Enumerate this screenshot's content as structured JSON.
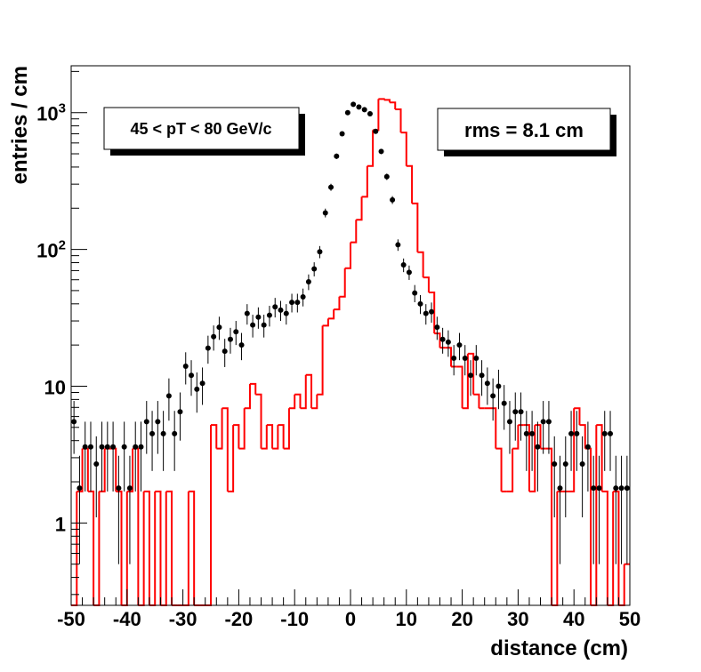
{
  "chart_data": {
    "type": "histogram",
    "xlabel": "distance (cm)",
    "ylabel": "entries / cm",
    "xlim": [
      -50,
      50
    ],
    "ylim": [
      0.25,
      2200
    ],
    "y_scale": "log",
    "x_ticks": [
      "-50",
      "-40",
      "-30",
      "-20",
      "-10",
      "0",
      "10",
      "20",
      "30",
      "40",
      "50"
    ],
    "y_ticks": [
      {
        "base": "1",
        "exp": "",
        "value": 1
      },
      {
        "base": "10",
        "exp": "",
        "value": 10
      },
      {
        "base": "10",
        "exp": "2",
        "value": 100
      },
      {
        "base": "10",
        "exp": "3",
        "value": 1000
      }
    ],
    "bin_width": 1,
    "annotations": {
      "pt_range": "45 < pT < 80 GeV/c",
      "rms": "rms = 8.1 cm"
    },
    "colors": {
      "histogram": "#ff0000",
      "points": "#000000",
      "frame": "#000000"
    },
    "series": [
      {
        "name": "histogram",
        "style": "step",
        "x_edges_start": -50,
        "values": [
          0,
          1.7,
          3.5,
          1.7,
          0,
          1.7,
          3.5,
          3.5,
          1.7,
          0,
          1.7,
          3.5,
          0,
          1.7,
          0,
          1.7,
          0,
          1.7,
          0,
          0,
          0,
          1.7,
          0,
          0,
          0,
          5.2,
          3.5,
          6.9,
          1.7,
          5.2,
          3.5,
          6.9,
          10.4,
          8.7,
          3.5,
          5.2,
          3.5,
          5.2,
          3.5,
          6.9,
          8.7,
          6.9,
          12.1,
          6.9,
          8.7,
          27.7,
          31.2,
          36.4,
          45.1,
          72.8,
          112.6,
          164.6,
          242.6,
          407.3,
          744.4,
          1258.2,
          1238.4,
          1186.3,
          1056.4,
          714.4,
          407.3,
          216.6,
          95.3,
          62.4,
          48.5,
          24.3,
          19.1,
          19.1,
          13.9,
          13.9,
          6.9,
          17.3,
          8.7,
          6.9,
          6.9,
          6.9,
          3.5,
          1.7,
          1.7,
          3.5,
          5.2,
          5.2,
          1.7,
          5.2,
          3.5,
          3.5,
          0,
          1.7,
          1.7,
          1.7,
          6.9,
          5.2,
          3.5,
          0,
          5.2,
          1.7,
          0,
          1.7,
          0,
          0.5
        ]
      },
      {
        "name": "data points",
        "style": "markers-with-error-bars",
        "x": [
          -49.5,
          -48.5,
          -47.5,
          -46.5,
          -45.5,
          -44.5,
          -43.5,
          -42.5,
          -41.5,
          -40.5,
          -39.5,
          -38.5,
          -37.5,
          -36.5,
          -35.5,
          -34.5,
          -33.5,
          -32.5,
          -31.5,
          -30.5,
          -29.5,
          -28.5,
          -27.5,
          -26.5,
          -25.5,
          -24.5,
          -23.5,
          -22.5,
          -21.5,
          -20.5,
          -19.5,
          -18.5,
          -17.5,
          -16.5,
          -15.5,
          -14.5,
          -13.5,
          -12.5,
          -11.5,
          -10.5,
          -9.5,
          -8.5,
          -7.5,
          -6.5,
          -5.5,
          -4.5,
          -3.5,
          -2.5,
          -1.5,
          -0.5,
          0.5,
          1.5,
          2.5,
          3.5,
          4.5,
          5.5,
          6.5,
          7.5,
          8.5,
          9.5,
          10.5,
          11.5,
          12.5,
          13.5,
          14.5,
          15.5,
          16.5,
          17.5,
          18.5,
          19.5,
          20.5,
          21.5,
          22.5,
          23.5,
          24.5,
          25.5,
          26.5,
          27.5,
          28.5,
          29.5,
          30.5,
          31.5,
          32.5,
          33.5,
          34.5,
          35.5,
          36.5,
          37.5,
          38.5,
          39.5,
          40.5,
          41.5,
          42.5,
          43.5,
          44.5,
          45.5,
          46.5,
          47.5,
          48.5,
          49.5
        ],
        "values": [
          5.5,
          1.8,
          3.6,
          3.6,
          2.7,
          3.6,
          3.6,
          3.6,
          1.8,
          3.6,
          1.8,
          3.6,
          3.6,
          5.5,
          4.5,
          5.5,
          4.5,
          8.5,
          4.5,
          6.5,
          14,
          12,
          9.5,
          10.5,
          19,
          23,
          27,
          18,
          22,
          25,
          20,
          34,
          28,
          32,
          28,
          33,
          38,
          36,
          34,
          41,
          41,
          45,
          58,
          72,
          96,
          185,
          285,
          480,
          700,
          1000,
          1150,
          1100,
          1050,
          980,
          730,
          520,
          340,
          230,
          108,
          77,
          68,
          48,
          40,
          34,
          35,
          27,
          22,
          21,
          16,
          20,
          16,
          12,
          16,
          12,
          10.5,
          8.5,
          10,
          7.5,
          5.5,
          6.5,
          6.5,
          4.5,
          4.5,
          3.6,
          5.5,
          5.5,
          2.7,
          1.8,
          2.7,
          4.5,
          4.5,
          2.7,
          3.6,
          1.8,
          1.8,
          4.5,
          4.5,
          1.8,
          1.8,
          1.8
        ],
        "errors": [
          2.3,
          1.3,
          1.9,
          1.9,
          1.6,
          1.9,
          1.9,
          1.9,
          1.3,
          1.9,
          1.3,
          1.9,
          1.9,
          2.3,
          2.1,
          2.3,
          2.1,
          2.9,
          2.1,
          2.5,
          3.7,
          3.5,
          3.1,
          3.2,
          4.4,
          4.8,
          5.2,
          4.2,
          4.7,
          5,
          4.5,
          5.8,
          5.3,
          5.7,
          5.3,
          5.7,
          6.2,
          6,
          5.8,
          6.4,
          6.4,
          6.7,
          7.6,
          8.5,
          9.8,
          13.6,
          16.9,
          21.9,
          26.5,
          31.6,
          33.9,
          33.2,
          32.4,
          31.3,
          27,
          22.8,
          18.4,
          15.2,
          10.4,
          8.8,
          8.2,
          6.9,
          6.3,
          5.8,
          5.9,
          5.2,
          4.7,
          4.6,
          4,
          4.5,
          4,
          3.5,
          4,
          3.5,
          3.2,
          2.9,
          3.2,
          2.7,
          2.3,
          2.5,
          2.5,
          2.1,
          2.1,
          1.9,
          2.3,
          2.3,
          1.6,
          1.3,
          1.6,
          2.1,
          2.1,
          1.6,
          1.9,
          1.3,
          1.3,
          2.1,
          2.1,
          1.3,
          1.3,
          1.3
        ]
      }
    ]
  }
}
